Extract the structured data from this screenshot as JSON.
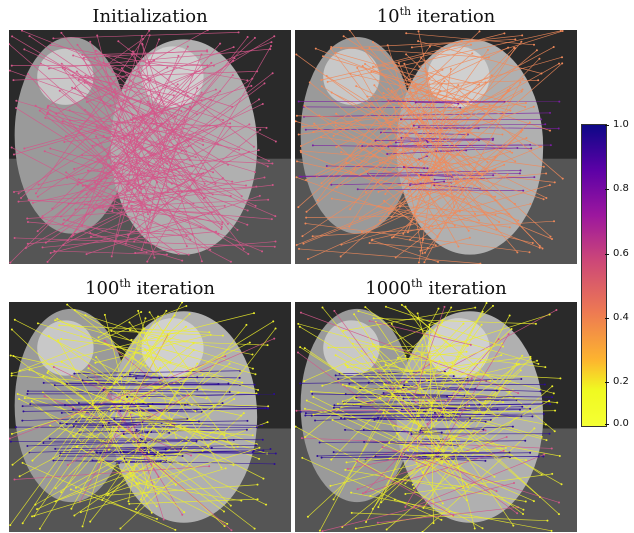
{
  "panels": [
    {
      "title_base": "Initialization",
      "title_sup": ""
    },
    {
      "title_base": "10",
      "title_sup": "th",
      "title_rest": " iteration"
    },
    {
      "title_base": "100",
      "title_sup": "th",
      "title_rest": " iteration"
    },
    {
      "title_base": "1000",
      "title_sup": "th",
      "title_rest": " iteration"
    }
  ],
  "colorbar": {
    "ticks": [
      "1.0",
      "0.8",
      "0.6",
      "0.4",
      "0.2",
      "0.0"
    ],
    "colormap": "plasma_r",
    "colors": {
      "high": "#0d0887",
      "mid": "#cc4778",
      "low": "#f0f921"
    }
  }
}
